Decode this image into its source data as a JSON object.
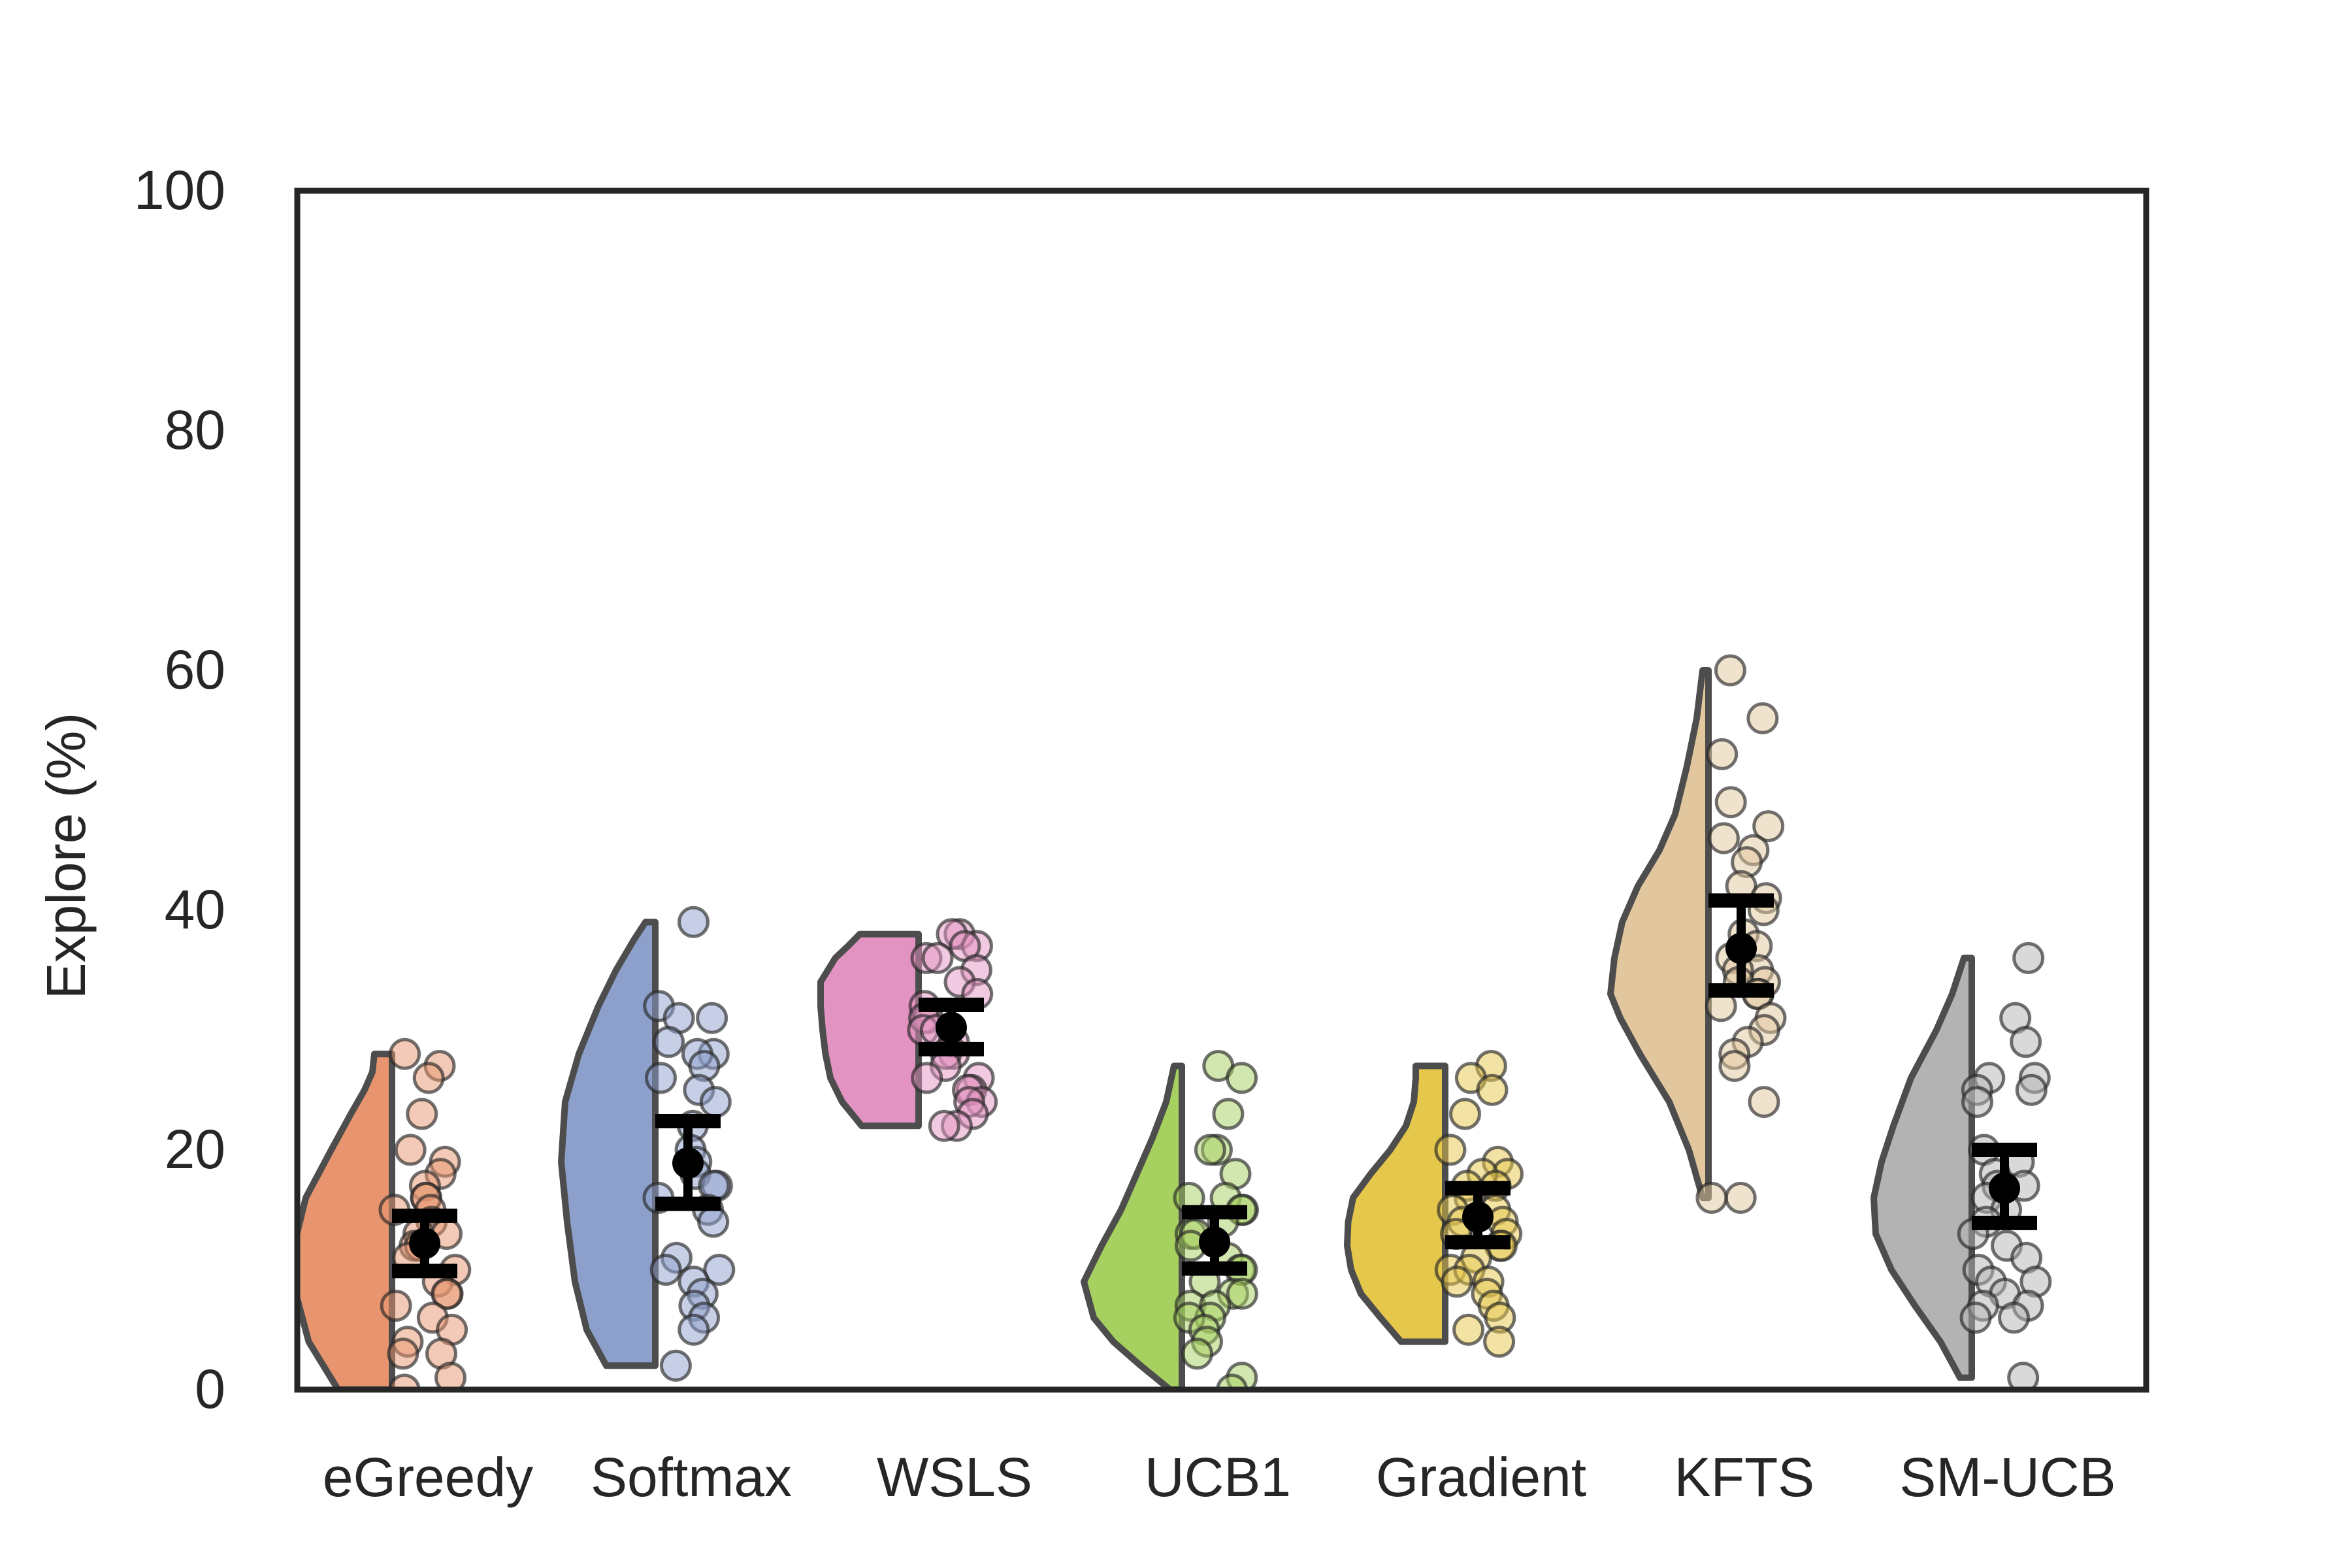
{
  "chart_data": {
    "type": "raincloud",
    "title": "",
    "xlabel": "",
    "ylabel": "Explore (%)",
    "ylim": [
      0,
      100
    ],
    "yticks": [
      "0",
      "20",
      "40",
      "60",
      "80",
      "100"
    ],
    "grid": false,
    "categories": [
      "eGreedy",
      "Softmax",
      "WSLS",
      "UCB1",
      "Gradient",
      "KFTS",
      "SM-UCB"
    ],
    "series": [
      {
        "category": "eGreedy",
        "color": "#e8956f",
        "mean": 12.2,
        "ci_low": 9.9,
        "ci_high": 14.5,
        "range": [
          0,
          28
        ],
        "density": [
          [
            0,
            0.55
          ],
          [
            4,
            0.85
          ],
          [
            8,
            0.98
          ],
          [
            12,
            1.0
          ],
          [
            16,
            0.88
          ],
          [
            20,
            0.62
          ],
          [
            23,
            0.42
          ],
          [
            25,
            0.28
          ],
          [
            26.5,
            0.2
          ],
          [
            28,
            0.18
          ]
        ],
        "points": [
          28,
          27,
          26,
          23,
          20,
          19,
          18,
          17,
          16,
          16,
          15,
          15,
          14,
          13,
          13,
          12,
          12,
          11,
          10,
          9,
          8,
          8,
          7,
          6,
          5,
          4,
          3,
          3,
          1,
          0
        ]
      },
      {
        "category": "Softmax",
        "color": "#8da0cb",
        "mean": 18.9,
        "ci_low": 15.5,
        "ci_high": 22.4,
        "range": [
          2,
          39
        ],
        "density": [
          [
            2,
            0.5
          ],
          [
            5,
            0.7
          ],
          [
            9,
            0.82
          ],
          [
            14,
            0.9
          ],
          [
            19,
            0.96
          ],
          [
            24,
            0.92
          ],
          [
            28,
            0.78
          ],
          [
            32,
            0.58
          ],
          [
            35,
            0.4
          ],
          [
            37.5,
            0.22
          ],
          [
            39,
            0.1
          ]
        ],
        "points": [
          39,
          32,
          31,
          31,
          29,
          28,
          28,
          27,
          26,
          25,
          24,
          22,
          20,
          19,
          18,
          17,
          17,
          16,
          15,
          14,
          11,
          10,
          10,
          9,
          8,
          7,
          6,
          5,
          2
        ]
      },
      {
        "category": "WSLS",
        "color": "#e393c1",
        "mean": 30.2,
        "ci_low": 28.4,
        "ci_high": 32.1,
        "range": [
          22,
          38
        ],
        "density": [
          [
            22,
            0.58
          ],
          [
            24,
            0.78
          ],
          [
            26,
            0.9
          ],
          [
            28,
            0.95
          ],
          [
            30,
            0.98
          ],
          [
            32,
            1.0
          ],
          [
            34,
            1.0
          ],
          [
            36,
            0.85
          ],
          [
            37,
            0.72
          ],
          [
            38,
            0.6
          ]
        ],
        "points": [
          38,
          38,
          37,
          37,
          36,
          36,
          35,
          34,
          33,
          32,
          31,
          31,
          30,
          30,
          29,
          28,
          28,
          27,
          26,
          26,
          25,
          25,
          24,
          24,
          23,
          22,
          22
        ]
      },
      {
        "category": "UCB1",
        "color": "#a6d05f",
        "mean": 12.3,
        "ci_low": 10.1,
        "ci_high": 14.8,
        "range": [
          0,
          27
        ],
        "density": [
          [
            0,
            0.12
          ],
          [
            2,
            0.42
          ],
          [
            4,
            0.7
          ],
          [
            6,
            0.9
          ],
          [
            9,
            1.0
          ],
          [
            12,
            0.82
          ],
          [
            15,
            0.62
          ],
          [
            18,
            0.46
          ],
          [
            21,
            0.3
          ],
          [
            24,
            0.16
          ],
          [
            27,
            0.08
          ]
        ],
        "points": [
          27,
          26,
          23,
          20,
          20,
          18,
          16,
          16,
          15,
          15,
          14,
          13,
          13,
          12,
          11,
          10,
          10,
          9,
          8,
          8,
          7,
          7,
          6,
          6,
          5,
          4,
          3,
          1,
          0
        ]
      },
      {
        "category": "Gradient",
        "color": "#e5c84b",
        "mean": 14.4,
        "ci_low": 12.3,
        "ci_high": 16.8,
        "range": [
          4,
          27
        ],
        "density": [
          [
            4,
            0.45
          ],
          [
            6,
            0.66
          ],
          [
            8,
            0.86
          ],
          [
            10,
            0.96
          ],
          [
            12,
            1.0
          ],
          [
            14,
            0.99
          ],
          [
            16,
            0.94
          ],
          [
            18,
            0.76
          ],
          [
            20,
            0.56
          ],
          [
            22,
            0.4
          ],
          [
            24,
            0.32
          ],
          [
            26,
            0.3
          ],
          [
            27,
            0.3
          ]
        ],
        "points": [
          27,
          26,
          25,
          23,
          20,
          19,
          18,
          18,
          17,
          17,
          16,
          15,
          15,
          14,
          14,
          13,
          13,
          12,
          12,
          11,
          10,
          10,
          9,
          9,
          8,
          7,
          6,
          5,
          4
        ]
      },
      {
        "category": "KFTS",
        "color": "#e2c79e",
        "mean": 36.8,
        "ci_low": 33.3,
        "ci_high": 40.8,
        "range": [
          16,
          60
        ],
        "density": [
          [
            16,
            0.06
          ],
          [
            20,
            0.2
          ],
          [
            24,
            0.4
          ],
          [
            28,
            0.7
          ],
          [
            31,
            0.9
          ],
          [
            33,
            1.0
          ],
          [
            36,
            0.96
          ],
          [
            39,
            0.88
          ],
          [
            42,
            0.72
          ],
          [
            45,
            0.5
          ],
          [
            48,
            0.34
          ],
          [
            52,
            0.22
          ],
          [
            56,
            0.12
          ],
          [
            60,
            0.06
          ]
        ],
        "points": [
          60,
          56,
          53,
          49,
          47,
          46,
          45,
          44,
          42,
          41,
          40,
          38,
          37,
          36,
          35,
          35,
          34,
          34,
          33,
          33,
          32,
          31,
          30,
          29,
          28,
          27,
          24,
          16,
          16
        ]
      },
      {
        "category": "SM-UCB",
        "color": "#b3b3b3",
        "mean": 16.8,
        "ci_low": 13.9,
        "ci_high": 20.0,
        "range": [
          1,
          36
        ],
        "density": [
          [
            1,
            0.12
          ],
          [
            4,
            0.32
          ],
          [
            7,
            0.58
          ],
          [
            10,
            0.82
          ],
          [
            13,
            0.98
          ],
          [
            16,
            1.0
          ],
          [
            19,
            0.92
          ],
          [
            22,
            0.8
          ],
          [
            26,
            0.62
          ],
          [
            30,
            0.36
          ],
          [
            33,
            0.2
          ],
          [
            36,
            0.08
          ]
        ],
        "points": [
          36,
          31,
          29,
          26,
          26,
          25,
          25,
          24,
          20,
          19,
          18,
          17,
          17,
          16,
          15,
          14,
          13,
          12,
          11,
          10,
          9,
          9,
          8,
          7,
          7,
          6,
          6,
          1
        ]
      }
    ]
  }
}
